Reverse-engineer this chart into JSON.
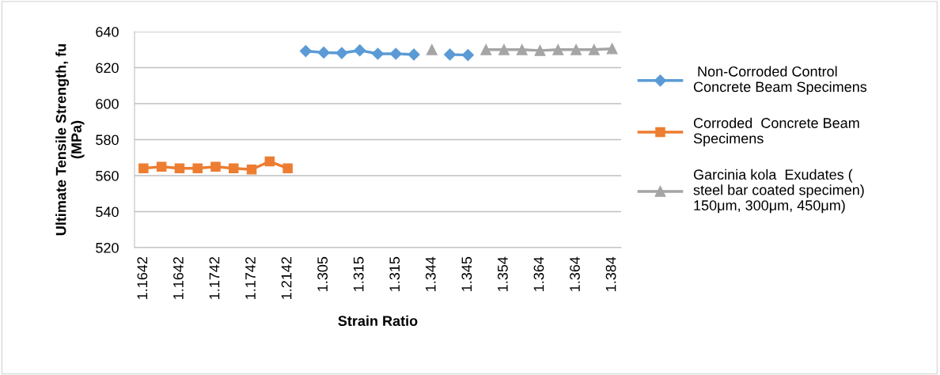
{
  "chart_data": {
    "type": "line",
    "xlabel": "Strain Ratio",
    "ylabel": "Ultimate Tensile Strength, fu\n(MPa)",
    "categories": [
      "1.1642",
      null,
      "1.1642",
      null,
      "1.1742",
      null,
      "1.1742",
      null,
      "1.2142",
      null,
      "1.305",
      null,
      "1.315",
      null,
      "1.315",
      null,
      "1.344",
      null,
      "1.345",
      null,
      "1.354",
      null,
      "1.364",
      null,
      "1.364",
      null,
      "1.384"
    ],
    "series": [
      {
        "name": " Non-Corroded Control\nConcrete Beam Specimens",
        "color": "#5b9bd5",
        "marker": "diamond",
        "values": [
          null,
          null,
          null,
          null,
          null,
          null,
          null,
          null,
          null,
          629.2,
          628.4,
          628.1,
          629.6,
          627.7,
          627.7,
          627.3,
          null,
          627.3,
          627.0,
          null,
          null,
          null,
          null,
          null,
          null,
          null,
          null
        ]
      },
      {
        "name": "Corroded  Concrete Beam\nSpecimens",
        "color": "#ed7d31",
        "marker": "square",
        "values": [
          564.1,
          564.9,
          564.1,
          564.1,
          564.9,
          564.1,
          563.4,
          567.9,
          564.1,
          null,
          null,
          null,
          null,
          null,
          null,
          null,
          null,
          null,
          null,
          null,
          null,
          null,
          null,
          null,
          null,
          null,
          null
        ]
      },
      {
        "name": "Garcinia kola  Exudates (\nsteel bar coated specimen)\n150μm, 300μm, 450μm)",
        "color": "#a5a5a5",
        "marker": "triangle",
        "values": [
          null,
          null,
          null,
          null,
          null,
          null,
          null,
          null,
          null,
          null,
          null,
          null,
          null,
          null,
          null,
          null,
          630.0,
          null,
          null,
          630.0,
          630.0,
          630.0,
          629.5,
          630.0,
          630.0,
          630.0,
          630.5
        ]
      }
    ],
    "ylim": [
      520,
      640
    ],
    "yticks": [
      520,
      540,
      560,
      580,
      600,
      620,
      640
    ],
    "grid": "y",
    "legend": "right"
  }
}
